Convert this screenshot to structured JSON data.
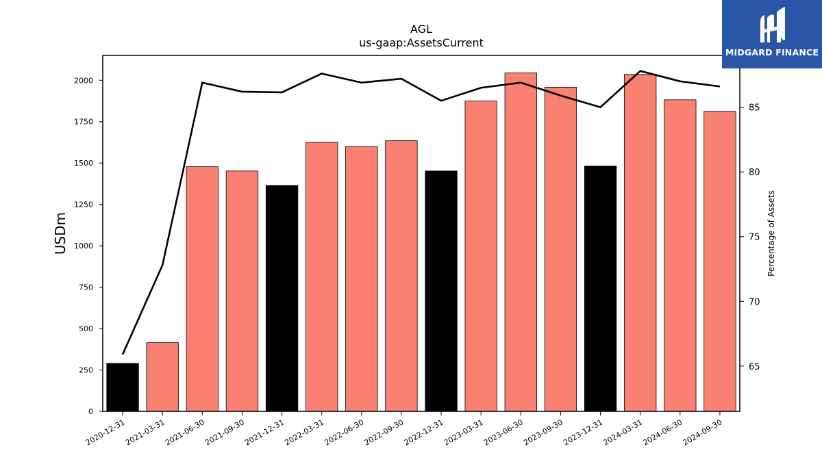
{
  "logo": {
    "text": "MIDGARD FINANCE",
    "background_color": "#2a56a8",
    "icon": "midgard-m-logo-icon"
  },
  "chart_data": {
    "type": "bar",
    "title": "AGL",
    "subtitle": "us-gaap:AssetsCurrent",
    "ylabel": "USDm",
    "y2label": "Percentage of Assets",
    "categories": [
      "2020-12-31",
      "2021-03-31",
      "2021-06-30",
      "2021-09-30",
      "2021-12-31",
      "2022-03-31",
      "2022-06-30",
      "2022-09-30",
      "2022-12-31",
      "2023-03-31",
      "2023-06-30",
      "2023-09-30",
      "2023-12-31",
      "2024-03-31",
      "2024-06-30",
      "2024-09-30"
    ],
    "series": [
      {
        "axis": "left",
        "type": "bar",
        "values": [
          290,
          415,
          1478,
          1452,
          1365,
          1625,
          1600,
          1635,
          1452,
          1875,
          2045,
          1958,
          1482,
          2035,
          1882,
          1812
        ],
        "colors": [
          "#000000",
          "#fa8072",
          "#fa8072",
          "#fa8072",
          "#000000",
          "#fa8072",
          "#fa8072",
          "#fa8072",
          "#000000",
          "#fa8072",
          "#fa8072",
          "#fa8072",
          "#000000",
          "#fa8072",
          "#fa8072",
          "#fa8072"
        ]
      },
      {
        "axis": "right",
        "type": "line",
        "color": "#000000",
        "values": [
          65.9,
          72.8,
          86.9,
          86.2,
          86.15,
          87.6,
          86.9,
          87.2,
          85.5,
          86.5,
          86.9,
          85.9,
          85.0,
          87.8,
          87.0,
          86.6
        ]
      }
    ],
    "ylim": [
      0,
      2150
    ],
    "yticks": [
      0,
      250,
      500,
      750,
      1000,
      1250,
      1500,
      1750,
      2000
    ],
    "y2lim": [
      61.5,
      89.0
    ],
    "y2ticks": [
      65,
      70,
      75,
      80,
      85
    ],
    "grid": false,
    "legend": "none"
  }
}
